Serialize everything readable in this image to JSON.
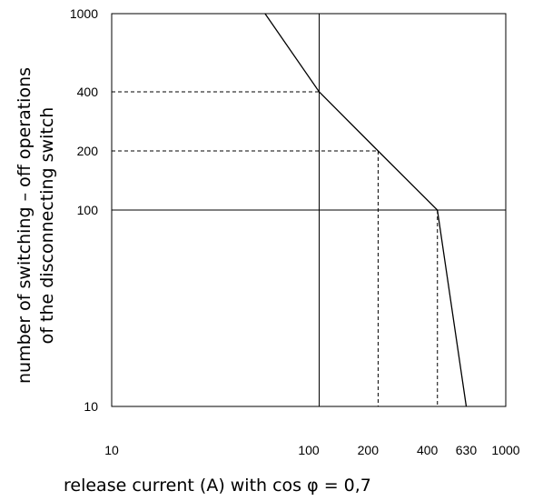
{
  "chart_data": {
    "type": "line",
    "title": "",
    "xlabel": "release current (A) with cos φ = 0,7",
    "ylabel_lines": [
      "number of switching – off operations",
      "of the disconnecting switch"
    ],
    "x_scale": "log",
    "y_scale": "log",
    "xlim": [
      10,
      1000
    ],
    "ylim": [
      10,
      1000
    ],
    "x_ticks": [
      {
        "value": 10,
        "label": "10"
      },
      {
        "value": 100,
        "label": "100"
      },
      {
        "value": 200,
        "label": "200"
      },
      {
        "value": 400,
        "label": "400"
      },
      {
        "value": 630,
        "label": "630"
      },
      {
        "value": 1000,
        "label": "1000"
      }
    ],
    "y_ticks": [
      {
        "value": 10,
        "label": "10"
      },
      {
        "value": 100,
        "label": "100"
      },
      {
        "value": 200,
        "label": "200"
      },
      {
        "value": 400,
        "label": "400"
      },
      {
        "value": 1000,
        "label": "1000"
      }
    ],
    "grid": {
      "solid_vertical": [
        113
      ],
      "solid_horizontal": [
        100
      ]
    },
    "series": [
      {
        "x": [
          60,
          113,
          225,
          450,
          630
        ],
        "y": [
          1000,
          400,
          200,
          100,
          10
        ]
      }
    ],
    "reference_lines": [
      {
        "from": [
          10,
          400
        ],
        "to": [
          113,
          400
        ],
        "style": "dashed"
      },
      {
        "from": [
          10,
          200
        ],
        "to": [
          225,
          200
        ],
        "style": "dashed"
      },
      {
        "from": [
          225,
          200
        ],
        "to": [
          225,
          10
        ],
        "style": "dashed"
      },
      {
        "from": [
          450,
          100
        ],
        "to": [
          450,
          10
        ],
        "style": "dashed"
      }
    ]
  }
}
